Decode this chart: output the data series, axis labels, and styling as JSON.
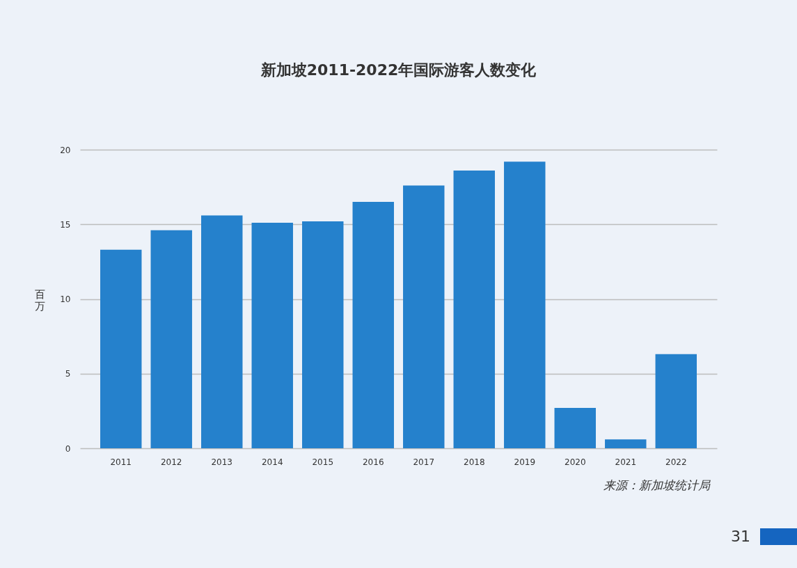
{
  "chart_data": {
    "type": "bar",
    "title": "新加坡2011-2022年国际游客人数变化",
    "ylabel": "百万",
    "categories": [
      "2011",
      "2012",
      "2013",
      "2014",
      "2015",
      "2016",
      "2017",
      "2018",
      "2019",
      "2020",
      "2021",
      "2022"
    ],
    "values": [
      13.3,
      14.6,
      15.6,
      15.1,
      15.2,
      16.5,
      17.6,
      18.6,
      19.2,
      2.7,
      0.6,
      6.3
    ],
    "color": "#2581cc",
    "ylim": [
      0,
      20
    ],
    "yticks": [
      0,
      5,
      10,
      15,
      20
    ],
    "grid": "y",
    "annotations": [
      "来源：新加坡统计局",
      "31"
    ]
  }
}
